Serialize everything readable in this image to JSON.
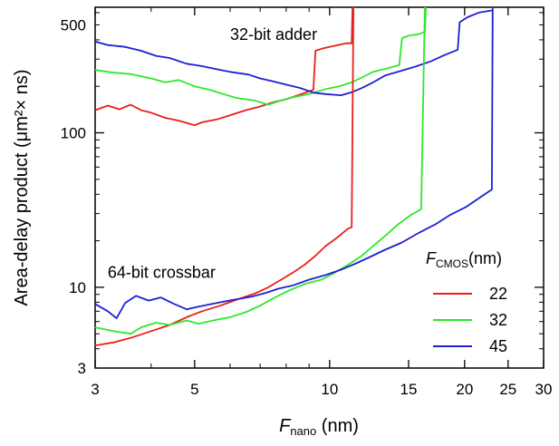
{
  "chart_data": {
    "type": "line",
    "x_scale": "log",
    "y_scale": "log",
    "xlim": [
      3,
      30
    ],
    "ylim": [
      3,
      650
    ],
    "xlabel": {
      "main": "F",
      "sub": "nano",
      "unit": " (nm)"
    },
    "ylabel": "Area-delay product (μm²× ns)",
    "x_ticks": [
      {
        "value": 3,
        "label": "3"
      },
      {
        "value": 5,
        "label": "5"
      },
      {
        "value": 10,
        "label": "10"
      },
      {
        "value": 15,
        "label": "15"
      },
      {
        "value": 20,
        "label": "20"
      },
      {
        "value": 25,
        "label": "25"
      },
      {
        "value": 30,
        "label": "30"
      }
    ],
    "y_ticks": [
      {
        "value": 3,
        "label": "3"
      },
      {
        "value": 10,
        "label": "10"
      },
      {
        "value": 100,
        "label": "100"
      },
      {
        "value": 500,
        "label": "500"
      }
    ],
    "annotations": [
      {
        "text": "32-bit adder",
        "x": 6.0,
        "y": 400
      },
      {
        "text": "64-bit crossbar",
        "x": 3.2,
        "y": 11.5
      }
    ],
    "legend": {
      "title_main": "F",
      "title_sub": "CMOS",
      "title_unit": "(nm)",
      "position": "lower-right"
    },
    "series": [
      {
        "name": "22",
        "color": "#e8201c",
        "group": "adder",
        "points": [
          [
            3.0,
            140
          ],
          [
            3.2,
            150
          ],
          [
            3.4,
            142
          ],
          [
            3.6,
            152
          ],
          [
            3.8,
            140
          ],
          [
            4.0,
            135
          ],
          [
            4.3,
            125
          ],
          [
            4.6,
            120
          ],
          [
            5.0,
            112
          ],
          [
            5.2,
            117
          ],
          [
            5.6,
            122
          ],
          [
            6.0,
            130
          ],
          [
            6.5,
            140
          ],
          [
            7.0,
            148
          ],
          [
            7.5,
            158
          ],
          [
            8.0,
            165
          ],
          [
            8.5,
            175
          ],
          [
            9.2,
            190
          ],
          [
            9.3,
            340
          ],
          [
            9.6,
            350
          ],
          [
            10.2,
            365
          ],
          [
            10.9,
            380
          ],
          [
            11.2,
            380
          ],
          [
            11.25,
            650
          ]
        ]
      },
      {
        "name": "32",
        "color": "#2ee82c",
        "group": "adder",
        "points": [
          [
            3.0,
            255
          ],
          [
            3.3,
            245
          ],
          [
            3.6,
            240
          ],
          [
            4.0,
            225
          ],
          [
            4.3,
            212
          ],
          [
            4.6,
            220
          ],
          [
            5.0,
            200
          ],
          [
            5.4,
            190
          ],
          [
            5.8,
            178
          ],
          [
            6.2,
            168
          ],
          [
            6.8,
            162
          ],
          [
            7.3,
            152
          ],
          [
            7.8,
            162
          ],
          [
            8.3,
            170
          ],
          [
            9.0,
            178
          ],
          [
            9.8,
            192
          ],
          [
            10.5,
            200
          ],
          [
            11.2,
            212
          ],
          [
            11.8,
            228
          ],
          [
            12.5,
            248
          ],
          [
            13.5,
            262
          ],
          [
            14.3,
            275
          ],
          [
            14.5,
            410
          ],
          [
            15.0,
            425
          ],
          [
            15.8,
            435
          ],
          [
            16.3,
            450
          ],
          [
            16.4,
            650
          ]
        ]
      },
      {
        "name": "45",
        "color": "#1e20d2",
        "group": "adder",
        "points": [
          [
            3.0,
            390
          ],
          [
            3.2,
            370
          ],
          [
            3.5,
            360
          ],
          [
            3.8,
            340
          ],
          [
            4.1,
            315
          ],
          [
            4.4,
            305
          ],
          [
            4.8,
            280
          ],
          [
            5.2,
            270
          ],
          [
            5.6,
            258
          ],
          [
            6.0,
            248
          ],
          [
            6.6,
            238
          ],
          [
            7.0,
            225
          ],
          [
            7.5,
            215
          ],
          [
            8.0,
            205
          ],
          [
            8.6,
            195
          ],
          [
            9.2,
            182
          ],
          [
            9.8,
            178
          ],
          [
            10.6,
            175
          ],
          [
            11.2,
            183
          ],
          [
            11.8,
            195
          ],
          [
            12.5,
            212
          ],
          [
            13.3,
            235
          ],
          [
            14.3,
            250
          ],
          [
            15.5,
            268
          ],
          [
            16.8,
            290
          ],
          [
            18.0,
            318
          ],
          [
            19.3,
            345
          ],
          [
            19.5,
            520
          ],
          [
            20.3,
            560
          ],
          [
            21.5,
            600
          ],
          [
            23.0,
            620
          ]
        ]
      },
      {
        "name": "22",
        "color": "#e8201c",
        "group": "crossbar",
        "points": [
          [
            3.0,
            4.2
          ],
          [
            3.3,
            4.4
          ],
          [
            3.6,
            4.7
          ],
          [
            4.0,
            5.2
          ],
          [
            4.4,
            5.7
          ],
          [
            4.8,
            6.4
          ],
          [
            5.2,
            7.0
          ],
          [
            5.7,
            7.6
          ],
          [
            6.2,
            8.3
          ],
          [
            6.8,
            9.1
          ],
          [
            7.3,
            10.0
          ],
          [
            7.8,
            11.2
          ],
          [
            8.3,
            12.5
          ],
          [
            8.8,
            14.0
          ],
          [
            9.3,
            16.0
          ],
          [
            9.8,
            18.5
          ],
          [
            10.4,
            21.0
          ],
          [
            11.0,
            24.0
          ],
          [
            11.2,
            24.5
          ],
          [
            11.3,
            650
          ]
        ]
      },
      {
        "name": "32",
        "color": "#2ee82c",
        "group": "crossbar",
        "points": [
          [
            3.0,
            5.5
          ],
          [
            3.3,
            5.2
          ],
          [
            3.6,
            5.0
          ],
          [
            3.8,
            5.5
          ],
          [
            4.1,
            5.9
          ],
          [
            4.4,
            5.7
          ],
          [
            4.8,
            6.1
          ],
          [
            5.1,
            5.8
          ],
          [
            5.5,
            6.1
          ],
          [
            6.0,
            6.4
          ],
          [
            6.5,
            6.9
          ],
          [
            7.0,
            7.6
          ],
          [
            7.5,
            8.5
          ],
          [
            8.1,
            9.5
          ],
          [
            8.8,
            10.5
          ],
          [
            9.6,
            11.2
          ],
          [
            10.3,
            12.5
          ],
          [
            11.0,
            14.0
          ],
          [
            11.8,
            16.0
          ],
          [
            12.5,
            18.5
          ],
          [
            13.3,
            21.5
          ],
          [
            14.2,
            25.5
          ],
          [
            15.2,
            29.5
          ],
          [
            16.0,
            32.0
          ],
          [
            16.3,
            650
          ]
        ]
      },
      {
        "name": "45",
        "color": "#1e20d2",
        "group": "crossbar",
        "points": [
          [
            3.0,
            7.8
          ],
          [
            3.2,
            7.0
          ],
          [
            3.35,
            6.3
          ],
          [
            3.5,
            7.9
          ],
          [
            3.7,
            8.8
          ],
          [
            3.95,
            8.2
          ],
          [
            4.2,
            8.6
          ],
          [
            4.5,
            7.8
          ],
          [
            4.8,
            7.2
          ],
          [
            5.1,
            7.5
          ],
          [
            5.6,
            7.9
          ],
          [
            6.1,
            8.3
          ],
          [
            6.7,
            8.7
          ],
          [
            7.2,
            9.2
          ],
          [
            7.7,
            9.8
          ],
          [
            8.3,
            10.3
          ],
          [
            9.0,
            11.2
          ],
          [
            9.8,
            12.0
          ],
          [
            10.6,
            13.0
          ],
          [
            11.4,
            14.2
          ],
          [
            12.3,
            15.7
          ],
          [
            13.3,
            17.5
          ],
          [
            14.5,
            19.5
          ],
          [
            15.8,
            22.5
          ],
          [
            17.2,
            25.5
          ],
          [
            18.6,
            29.5
          ],
          [
            20.1,
            33.0
          ],
          [
            21.6,
            38.0
          ],
          [
            23.0,
            43.0
          ],
          [
            23.1,
            650
          ]
        ]
      }
    ]
  }
}
